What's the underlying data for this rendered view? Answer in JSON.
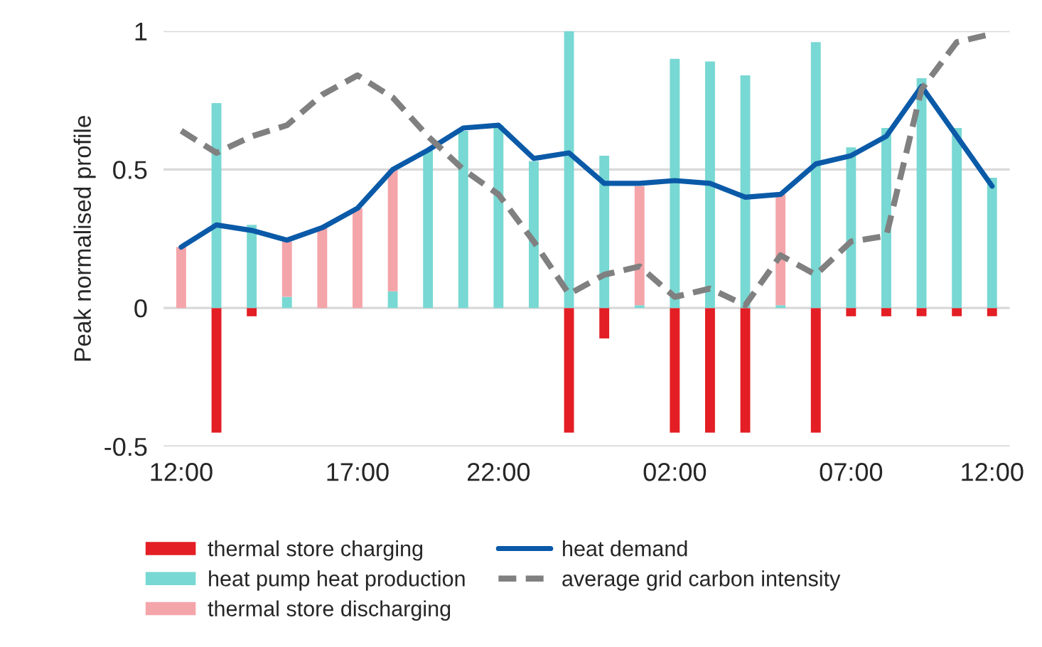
{
  "chart_data": {
    "type": "bar",
    "stacked": true,
    "ylabel": "Peak normalised profile",
    "categories": [
      "12:00",
      null,
      null,
      null,
      null,
      "17:00",
      null,
      null,
      null,
      "22:00",
      null,
      null,
      null,
      null,
      "02:00",
      null,
      null,
      null,
      null,
      "07:00",
      null,
      null,
      null,
      "12:00"
    ],
    "ylim": [
      -0.5,
      1
    ],
    "yticks": [
      -0.5,
      0,
      0.5,
      1
    ],
    "grid": "y",
    "legend": "bottom",
    "series": [
      {
        "name": "thermal store charging",
        "color": "#e31e24",
        "values": [
          0,
          -0.45,
          -0.03,
          0,
          0,
          0,
          0,
          0,
          0,
          0,
          0,
          -0.45,
          -0.11,
          0,
          -0.45,
          -0.45,
          -0.45,
          0,
          -0.45,
          -0.03,
          -0.03,
          -0.03,
          -0.03,
          -0.03
        ]
      },
      {
        "name": "heat pump heat production",
        "color": "#78d8d3",
        "values": [
          0,
          0.74,
          0.3,
          0.04,
          0,
          0,
          0.06,
          0.57,
          0.64,
          0.66,
          0.53,
          1.0,
          0.55,
          0.01,
          0.9,
          0.89,
          0.84,
          0.01,
          0.96,
          0.58,
          0.65,
          0.83,
          0.65,
          0.47
        ]
      },
      {
        "name": "thermal store discharging",
        "color": "#f4a5aa",
        "values": [
          0.22,
          0,
          0,
          0.2,
          0.29,
          0.36,
          0.44,
          0,
          0,
          0,
          0,
          0,
          0,
          0.43,
          0,
          0,
          0,
          0.4,
          0,
          0,
          0,
          0,
          0,
          0
        ]
      },
      {
        "name": "heat demand",
        "type": "line",
        "color": "#0a5aa8",
        "line_style": "solid",
        "values": [
          0.22,
          0.3,
          0.28,
          0.245,
          0.29,
          0.36,
          0.5,
          0.57,
          0.65,
          0.66,
          0.54,
          0.56,
          0.45,
          0.45,
          0.46,
          0.45,
          0.4,
          0.41,
          0.52,
          0.55,
          0.62,
          0.8,
          0.62,
          0.44
        ]
      },
      {
        "name": "average grid carbon intensity",
        "type": "line",
        "color": "#808080",
        "line_style": "dashed",
        "values": [
          0.64,
          0.56,
          0.62,
          0.66,
          0.77,
          0.84,
          0.76,
          0.62,
          0.5,
          0.41,
          0.24,
          0.05,
          0.12,
          0.15,
          0.04,
          0.07,
          0.01,
          0.19,
          0.12,
          0.24,
          0.26,
          0.79,
          0.96,
          0.99
        ]
      }
    ]
  }
}
